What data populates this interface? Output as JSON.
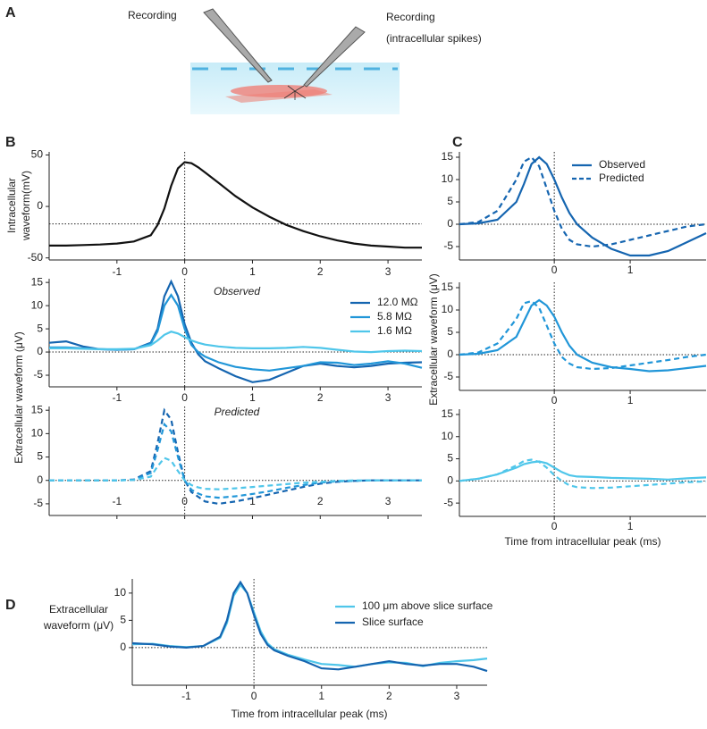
{
  "figure_labels": [
    "A",
    "B",
    "C",
    "D"
  ],
  "illustration": {
    "left_label": "Recording",
    "right_label": [
      "Recording",
      "(intracellular spikes)"
    ]
  },
  "chart_data": [
    {
      "type": "line",
      "ylabel": [
        "Intracellular",
        "waveform(mV)"
      ],
      "x": [
        -2,
        -1.75,
        -1.5,
        -1.25,
        -1,
        -0.75,
        -0.5,
        -0.4,
        -0.3,
        -0.2,
        -0.1,
        0,
        0.1,
        0.2,
        0.3,
        0.5,
        0.75,
        1,
        1.25,
        1.5,
        1.75,
        2,
        2.25,
        2.5,
        2.75,
        3,
        3.25,
        3.5
      ],
      "series": [
        {
          "color": "#111111",
          "values": [
            -38,
            -38,
            -37.5,
            -37,
            -36,
            -34,
            -28,
            -18,
            -2,
            20,
            37,
            43,
            42,
            38,
            33,
            23,
            10,
            -1,
            -10,
            -18,
            -24,
            -29,
            -33,
            -36,
            -38,
            -39,
            -40,
            -40
          ]
        }
      ],
      "xlim": [
        -2,
        3.5
      ],
      "ylim": [
        -52,
        53
      ],
      "xticks": [
        -1,
        0,
        1,
        2,
        3
      ],
      "yticks": [
        50,
        0,
        -50
      ],
      "hline": -17,
      "vline": 0
    },
    {
      "type": "line",
      "ylabel": "Extracellular waveform (μV)",
      "annotation": "Observed",
      "x": [
        -2,
        -1.75,
        -1.5,
        -1.25,
        -1,
        -0.75,
        -0.5,
        -0.4,
        -0.3,
        -0.2,
        -0.1,
        0,
        0.1,
        0.2,
        0.3,
        0.5,
        0.75,
        1,
        1.25,
        1.5,
        1.75,
        2,
        2.25,
        2.5,
        2.75,
        3,
        3.25,
        3.5
      ],
      "series": [
        {
          "name": "12.0 MΩ",
          "color": "#1565b0",
          "values": [
            2,
            2.3,
            1.2,
            0.6,
            0.5,
            0.6,
            2,
            5,
            12,
            15.2,
            12,
            6,
            2,
            -0.5,
            -2,
            -3.5,
            -5.2,
            -6.5,
            -6,
            -4.5,
            -3,
            -2.5,
            -3,
            -3.3,
            -3,
            -2.5,
            -2.3,
            -2.2
          ]
        },
        {
          "name": "5.8 MΩ",
          "color": "#2196d8",
          "values": [
            1,
            1,
            0.8,
            0.6,
            0.5,
            0.6,
            1.8,
            4.5,
            10,
            12.3,
            10,
            5,
            1.5,
            0,
            -1,
            -2.2,
            -3.2,
            -3.7,
            -4,
            -3.5,
            -3,
            -2.2,
            -2.3,
            -2.8,
            -2.5,
            -2,
            -2.5,
            -3.4
          ]
        },
        {
          "name": "1.6 MΩ",
          "color": "#4fc6ea",
          "values": [
            0.8,
            0.8,
            0.7,
            0.6,
            0.6,
            0.7,
            1.5,
            2.5,
            3.7,
            4.4,
            4,
            3.2,
            2.5,
            2,
            1.6,
            1.2,
            0.9,
            0.8,
            0.8,
            0.9,
            1.1,
            0.9,
            0.5,
            0.1,
            0,
            0.2,
            0.3,
            0.2
          ]
        }
      ],
      "xlim": [
        -2,
        3.5
      ],
      "ylim": [
        -7.5,
        15.8
      ],
      "xticks": [
        -1,
        0,
        1,
        2,
        3
      ],
      "yticks": [
        15,
        10,
        5,
        0,
        -5
      ],
      "hline": 0,
      "vline": 0
    },
    {
      "type": "line",
      "annotation": "Predicted",
      "x": [
        -2,
        -1.75,
        -1.5,
        -1.25,
        -1,
        -0.75,
        -0.5,
        -0.4,
        -0.3,
        -0.2,
        -0.1,
        0,
        0.1,
        0.2,
        0.3,
        0.5,
        0.75,
        1,
        1.25,
        1.5,
        1.75,
        2,
        2.25,
        2.5,
        2.75,
        3,
        3.25,
        3.5
      ],
      "series": [
        {
          "color": "#1565b0",
          "dash": true,
          "values": [
            0,
            0,
            0,
            0,
            0,
            0.2,
            2,
            8,
            15,
            13,
            6,
            0,
            -2.5,
            -3.5,
            -4.5,
            -5,
            -4.5,
            -3.8,
            -3,
            -2.2,
            -1.4,
            -0.7,
            -0.3,
            -0.1,
            0,
            0,
            0,
            0
          ]
        },
        {
          "color": "#2196d8",
          "dash": true,
          "values": [
            0,
            0,
            0,
            0,
            0,
            0.1,
            1.6,
            6.5,
            12,
            10.5,
            5,
            0,
            -2,
            -2.8,
            -3.4,
            -3.7,
            -3.4,
            -2.9,
            -2.3,
            -1.6,
            -1,
            -0.5,
            -0.2,
            -0.1,
            0,
            0,
            0,
            0
          ]
        },
        {
          "color": "#4fc6ea",
          "dash": true,
          "values": [
            0,
            0,
            0,
            0,
            0,
            0.1,
            0.8,
            3,
            4.8,
            4.2,
            2,
            0,
            -1,
            -1.5,
            -1.8,
            -1.9,
            -1.7,
            -1.4,
            -1.1,
            -0.8,
            -0.5,
            -0.3,
            -0.1,
            0,
            0,
            0,
            0,
            0
          ]
        }
      ],
      "xlim": [
        -2,
        3.5
      ],
      "ylim": [
        -7.5,
        15.8
      ],
      "xticks": [
        -1,
        0,
        1,
        2,
        3
      ],
      "yticks": [
        15,
        10,
        5,
        0,
        -5
      ],
      "hline": 0,
      "vline": 0
    },
    {
      "type": "line",
      "x": [
        -1.25,
        -1,
        -0.75,
        -0.5,
        -0.4,
        -0.3,
        -0.2,
        -0.1,
        0,
        0.1,
        0.2,
        0.3,
        0.5,
        0.75,
        1,
        1.25,
        1.5,
        1.75,
        2
      ],
      "series": [
        {
          "name": "Observed",
          "color": "#1565b0",
          "values": [
            0,
            0.2,
            1,
            5,
            9,
            13.5,
            15,
            13.5,
            10,
            6,
            2.5,
            0,
            -3,
            -5.5,
            -7,
            -7,
            -6,
            -4,
            -2
          ]
        },
        {
          "name": "Predicted",
          "color": "#1565b0",
          "dash": true,
          "values": [
            0,
            0.5,
            3,
            10,
            14,
            15,
            13,
            8,
            3,
            -1,
            -3.5,
            -4.5,
            -5,
            -4.5,
            -3.5,
            -2.5,
            -1.5,
            -0.5,
            0
          ]
        }
      ],
      "xlim": [
        -1.25,
        2
      ],
      "ylim": [
        -8,
        16.2
      ],
      "xticks": [
        0,
        1
      ],
      "yticks": [
        15,
        10,
        5,
        0,
        -5
      ],
      "hline": 0,
      "vline": 0
    },
    {
      "type": "line",
      "ylabel": "Extracellular waveform (μV)",
      "x": [
        -1.25,
        -1,
        -0.75,
        -0.5,
        -0.4,
        -0.3,
        -0.2,
        -0.1,
        0,
        0.1,
        0.2,
        0.3,
        0.5,
        0.75,
        1,
        1.25,
        1.5,
        1.75,
        2
      ],
      "series": [
        {
          "color": "#2196d8",
          "values": [
            0,
            0.2,
            1,
            4,
            7.5,
            11,
            12.2,
            11,
            8.5,
            5,
            2,
            0,
            -1.8,
            -2.8,
            -3.2,
            -3.7,
            -3.5,
            -3,
            -2.5
          ]
        },
        {
          "color": "#2196d8",
          "dash": true,
          "values": [
            0,
            0.5,
            2.5,
            8,
            11.5,
            12,
            10.5,
            6.5,
            2.5,
            -0.5,
            -2,
            -2.8,
            -3.2,
            -3,
            -2.4,
            -1.8,
            -1.2,
            -0.5,
            0
          ]
        }
      ],
      "xlim": [
        -1.25,
        2
      ],
      "ylim": [
        -8,
        16.2
      ],
      "xticks": [
        0,
        1
      ],
      "yticks": [
        15,
        10,
        5,
        0,
        -5
      ],
      "hline": 0,
      "vline": 0
    },
    {
      "type": "line",
      "xlabel": "Time from intracellular peak (ms)",
      "x": [
        -1.25,
        -1,
        -0.75,
        -0.5,
        -0.4,
        -0.3,
        -0.2,
        -0.1,
        0,
        0.1,
        0.2,
        0.3,
        0.5,
        0.75,
        1,
        1.25,
        1.5,
        1.75,
        2
      ],
      "series": [
        {
          "color": "#4fc6ea",
          "values": [
            0,
            0.5,
            1.5,
            3,
            3.8,
            4.2,
            4.4,
            4,
            3,
            2,
            1.3,
            1,
            0.9,
            0.7,
            0.6,
            0.5,
            0.3,
            0.6,
            0.8
          ]
        },
        {
          "color": "#4fc6ea",
          "dash": true,
          "values": [
            0,
            0.5,
            1.5,
            3.5,
            4.5,
            4.8,
            4.3,
            3,
            1.3,
            0,
            -1,
            -1.4,
            -1.6,
            -1.5,
            -1.2,
            -0.9,
            -0.6,
            -0.3,
            -0.1
          ]
        }
      ],
      "xlim": [
        -1.25,
        2
      ],
      "ylim": [
        -8,
        16.2
      ],
      "xticks": [
        0,
        1
      ],
      "yticks": [
        15,
        10,
        5,
        0,
        -5
      ],
      "hline": 0,
      "vline": 0
    },
    {
      "type": "line",
      "ylabel": [
        "Extracellular",
        "waveform (μV)"
      ],
      "xlabel": "Time from intracellular peak (ms)",
      "x": [
        -1.8,
        -1.5,
        -1.25,
        -1,
        -0.75,
        -0.5,
        -0.4,
        -0.3,
        -0.2,
        -0.1,
        0,
        0.1,
        0.2,
        0.3,
        0.5,
        0.75,
        1,
        1.25,
        1.5,
        1.75,
        2,
        2.25,
        2.5,
        2.75,
        3,
        3.25,
        3.45
      ],
      "series": [
        {
          "name": "100 μm above  slice surface",
          "color": "#4fc6ea",
          "values": [
            0.6,
            0.7,
            0.3,
            0.1,
            0.3,
            1.8,
            4.5,
            9.5,
            11.5,
            10,
            6.5,
            3,
            0.8,
            -0.3,
            -1.3,
            -2.2,
            -3,
            -3.2,
            -3.5,
            -3,
            -2.7,
            -2.8,
            -3.4,
            -2.8,
            -2.5,
            -2.3,
            -2
          ]
        },
        {
          "name": "Slice surface",
          "color": "#1565b0",
          "values": [
            0.8,
            0.6,
            0.2,
            0,
            0.3,
            2,
            5,
            10,
            12,
            10,
            6,
            2.5,
            0.5,
            -0.5,
            -1.5,
            -2.5,
            -3.8,
            -4,
            -3.5,
            -3,
            -2.5,
            -3,
            -3.3,
            -3,
            -3,
            -3.5,
            -4.3
          ]
        }
      ],
      "xlim": [
        -1.8,
        3.45
      ],
      "ylim": [
        -6.9,
        12.6
      ],
      "xticks": [
        -1,
        0,
        1,
        2,
        3
      ],
      "yticks": [
        10,
        5,
        0
      ],
      "hline": 0,
      "vline": 0
    }
  ]
}
